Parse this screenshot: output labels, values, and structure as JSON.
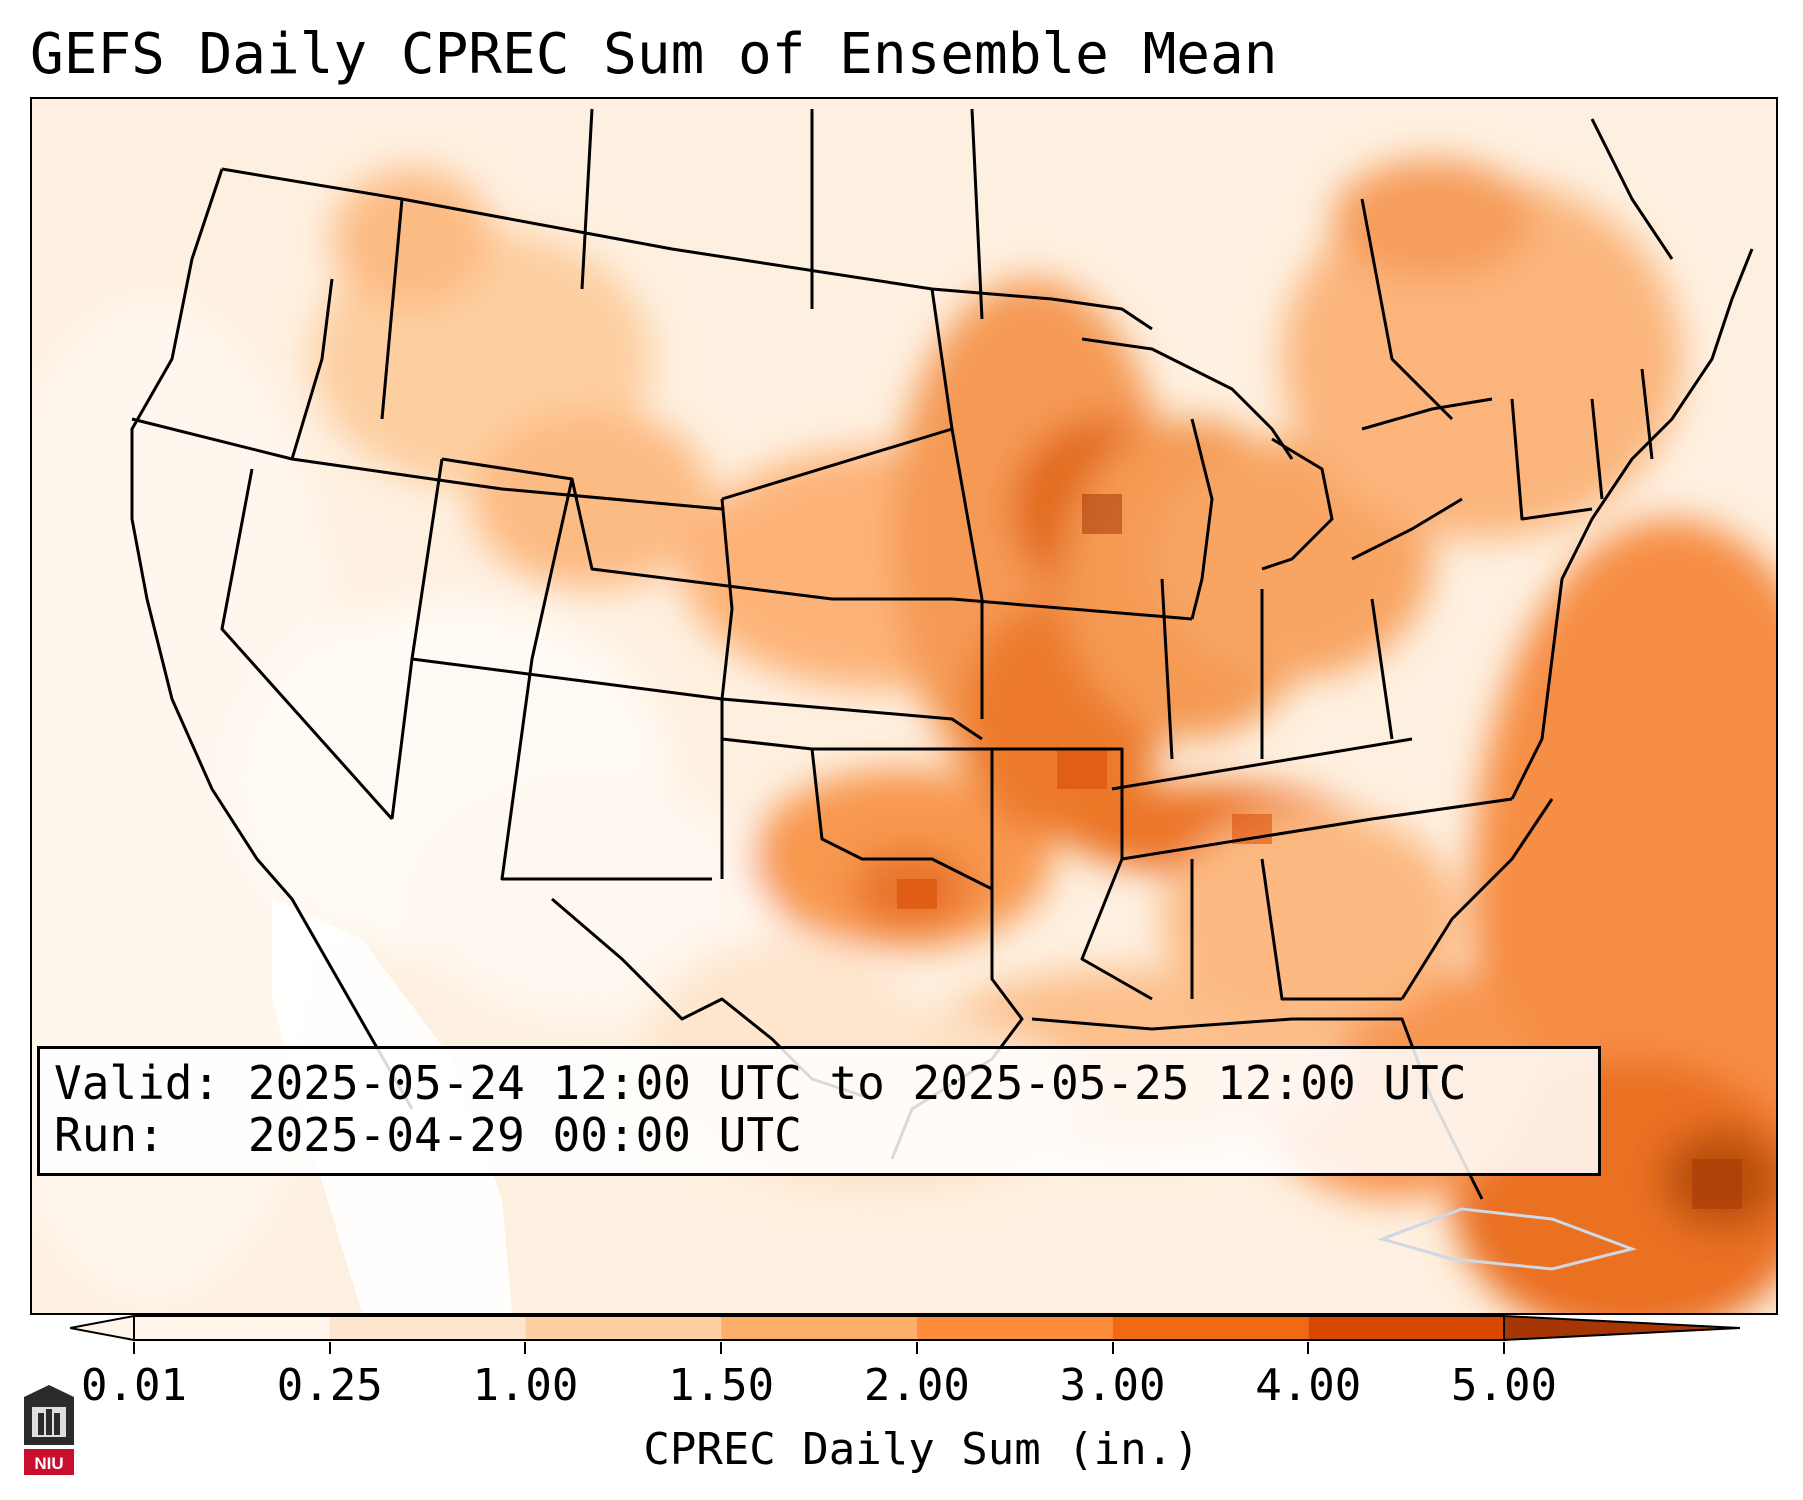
{
  "title": "GEFS Daily CPREC Sum of Ensemble Mean",
  "info": {
    "valid_label": "Valid:",
    "valid_value": "2025-05-24 12:00 UTC to 2025-05-25 12:00 UTC",
    "run_label": "Run:",
    "run_value": "2025-04-29 00:00 UTC"
  },
  "colorbar": {
    "label": "CPREC Daily Sum (in.)",
    "ticks": [
      "0.01",
      "0.25",
      "1.00",
      "1.50",
      "2.00",
      "3.00",
      "4.00",
      "5.00"
    ],
    "colors": [
      "#fff5eb",
      "#fee6ce",
      "#fdd0a2",
      "#fdae6b",
      "#fd8d3c",
      "#f16913",
      "#d94801",
      "#a63603"
    ],
    "extend": "both"
  },
  "logo": {
    "text": "NIU",
    "colors": {
      "background": "#2b2b2b",
      "accent": "#c8102e"
    }
  }
}
